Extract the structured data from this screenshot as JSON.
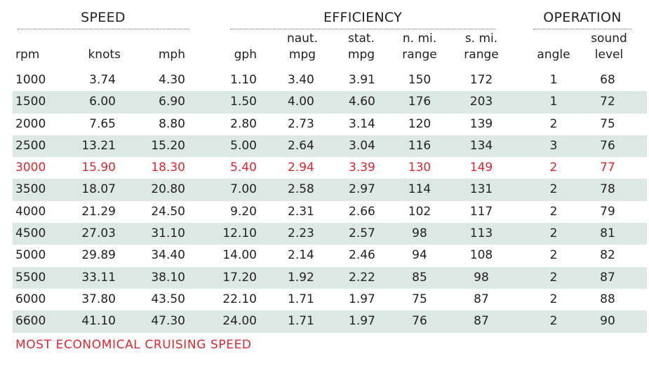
{
  "groups": {
    "speed": "SPEED",
    "efficiency": "EFFICIENCY",
    "operation": "OPERATION"
  },
  "headers": {
    "rpm": [
      "rpm"
    ],
    "knots": [
      "knots"
    ],
    "mph": [
      "mph"
    ],
    "gph": [
      "gph"
    ],
    "naut_mpg": [
      "naut.",
      "mpg"
    ],
    "stat_mpg": [
      "stat.",
      "mpg"
    ],
    "n_mi_range": [
      "n. mi.",
      "range"
    ],
    "s_mi_range": [
      "s. mi.",
      "range"
    ],
    "angle": [
      "angle"
    ],
    "sound_level": [
      "sound",
      "level"
    ]
  },
  "rows": [
    {
      "rpm": "1000",
      "knots": "3.74",
      "mph": "4.30",
      "gph": "1.10",
      "naut_mpg": "3.40",
      "stat_mpg": "3.91",
      "n_mi_range": "150",
      "s_mi_range": "172",
      "angle": "1",
      "sound_level": "68"
    },
    {
      "rpm": "1500",
      "knots": "6.00",
      "mph": "6.90",
      "gph": "1.50",
      "naut_mpg": "4.00",
      "stat_mpg": "4.60",
      "n_mi_range": "176",
      "s_mi_range": "203",
      "angle": "1",
      "sound_level": "72"
    },
    {
      "rpm": "2000",
      "knots": "7.65",
      "mph": "8.80",
      "gph": "2.80",
      "naut_mpg": "2.73",
      "stat_mpg": "3.14",
      "n_mi_range": "120",
      "s_mi_range": "139",
      "angle": "2",
      "sound_level": "75"
    },
    {
      "rpm": "2500",
      "knots": "13.21",
      "mph": "15.20",
      "gph": "5.00",
      "naut_mpg": "2.64",
      "stat_mpg": "3.04",
      "n_mi_range": "116",
      "s_mi_range": "134",
      "angle": "3",
      "sound_level": "76"
    },
    {
      "rpm": "3000",
      "knots": "15.90",
      "mph": "18.30",
      "gph": "5.40",
      "naut_mpg": "2.94",
      "stat_mpg": "3.39",
      "n_mi_range": "130",
      "s_mi_range": "149",
      "angle": "2",
      "sound_level": "77",
      "highlight": true
    },
    {
      "rpm": "3500",
      "knots": "18.07",
      "mph": "20.80",
      "gph": "7.00",
      "naut_mpg": "2.58",
      "stat_mpg": "2.97",
      "n_mi_range": "114",
      "s_mi_range": "131",
      "angle": "2",
      "sound_level": "78"
    },
    {
      "rpm": "4000",
      "knots": "21.29",
      "mph": "24.50",
      "gph": "9.20",
      "naut_mpg": "2.31",
      "stat_mpg": "2.66",
      "n_mi_range": "102",
      "s_mi_range": "117",
      "angle": "2",
      "sound_level": "79"
    },
    {
      "rpm": "4500",
      "knots": "27.03",
      "mph": "31.10",
      "gph": "12.10",
      "naut_mpg": "2.23",
      "stat_mpg": "2.57",
      "n_mi_range": "98",
      "s_mi_range": "113",
      "angle": "2",
      "sound_level": "81"
    },
    {
      "rpm": "5000",
      "knots": "29.89",
      "mph": "34.40",
      "gph": "14.00",
      "naut_mpg": "2.14",
      "stat_mpg": "2.46",
      "n_mi_range": "94",
      "s_mi_range": "108",
      "angle": "2",
      "sound_level": "82"
    },
    {
      "rpm": "5500",
      "knots": "33.11",
      "mph": "38.10",
      "gph": "17.20",
      "naut_mpg": "1.92",
      "stat_mpg": "2.22",
      "n_mi_range": "85",
      "s_mi_range": "98",
      "angle": "2",
      "sound_level": "87"
    },
    {
      "rpm": "6000",
      "knots": "37.80",
      "mph": "43.50",
      "gph": "22.10",
      "naut_mpg": "1.71",
      "stat_mpg": "1.97",
      "n_mi_range": "75",
      "s_mi_range": "87",
      "angle": "2",
      "sound_level": "88"
    },
    {
      "rpm": "6600",
      "knots": "41.10",
      "mph": "47.30",
      "gph": "24.00",
      "naut_mpg": "1.71",
      "stat_mpg": "1.97",
      "n_mi_range": "76",
      "s_mi_range": "87",
      "angle": "2",
      "sound_level": "90"
    }
  ],
  "footnote": "MOST ECONOMICAL CRUISING SPEED",
  "colors": {
    "highlight": "#e0262f",
    "band": "#dce8e3",
    "text": "#231f20"
  }
}
